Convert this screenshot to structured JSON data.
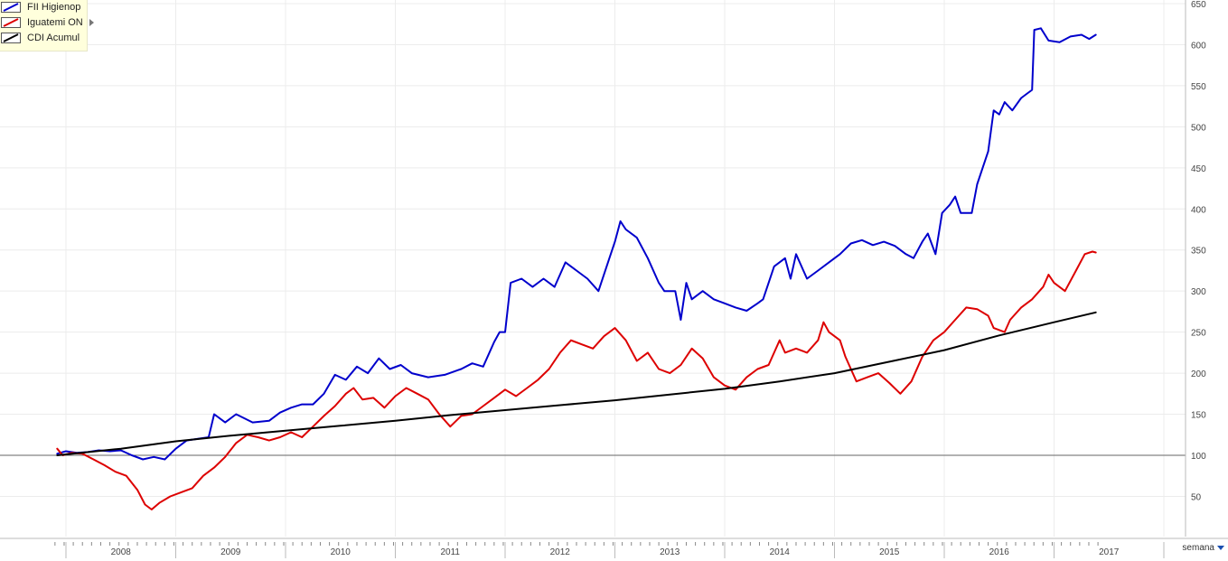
{
  "legend": {
    "items": [
      {
        "label": "FII Higienop",
        "color": "#0000cc"
      },
      {
        "label": "Iguatemi ON",
        "color": "#dd0000"
      },
      {
        "label": "CDI Acumul",
        "color": "#000000"
      }
    ],
    "expand_icon": "triangle-right-icon"
  },
  "period_selector": {
    "label": "semana",
    "icon": "caret-down-icon"
  },
  "chart_data": {
    "type": "line",
    "ylim": [
      0,
      650
    ],
    "yticks": [
      50,
      100,
      150,
      200,
      250,
      300,
      350,
      400,
      450,
      500,
      550,
      600,
      650
    ],
    "baseline": 100,
    "grid": true,
    "legend_position": "top-left",
    "xlim": [
      2007.85,
      2017.45
    ],
    "xtick_labels": [
      "2008",
      "2009",
      "2010",
      "2011",
      "2012",
      "2013",
      "2014",
      "2015",
      "2016",
      "2017"
    ],
    "series": [
      {
        "name": "FII Higienop",
        "color": "#0000cc",
        "points": [
          [
            2007.92,
            102
          ],
          [
            2008.0,
            105
          ],
          [
            2008.1,
            103
          ],
          [
            2008.2,
            104
          ],
          [
            2008.3,
            106
          ],
          [
            2008.4,
            105
          ],
          [
            2008.5,
            106
          ],
          [
            2008.6,
            100
          ],
          [
            2008.7,
            95
          ],
          [
            2008.8,
            98
          ],
          [
            2008.9,
            95
          ],
          [
            2009.0,
            108
          ],
          [
            2009.1,
            118
          ],
          [
            2009.2,
            120
          ],
          [
            2009.3,
            122
          ],
          [
            2009.35,
            150
          ],
          [
            2009.45,
            140
          ],
          [
            2009.55,
            150
          ],
          [
            2009.7,
            140
          ],
          [
            2009.85,
            142
          ],
          [
            2009.95,
            152
          ],
          [
            2010.05,
            158
          ],
          [
            2010.15,
            162
          ],
          [
            2010.25,
            162
          ],
          [
            2010.35,
            175
          ],
          [
            2010.45,
            198
          ],
          [
            2010.55,
            192
          ],
          [
            2010.65,
            208
          ],
          [
            2010.75,
            200
          ],
          [
            2010.85,
            218
          ],
          [
            2010.95,
            205
          ],
          [
            2011.05,
            210
          ],
          [
            2011.15,
            200
          ],
          [
            2011.3,
            195
          ],
          [
            2011.45,
            198
          ],
          [
            2011.6,
            205
          ],
          [
            2011.7,
            212
          ],
          [
            2011.8,
            208
          ],
          [
            2011.9,
            238
          ],
          [
            2011.95,
            250
          ],
          [
            2012.0,
            250
          ],
          [
            2012.05,
            310
          ],
          [
            2012.15,
            315
          ],
          [
            2012.25,
            305
          ],
          [
            2012.35,
            315
          ],
          [
            2012.45,
            305
          ],
          [
            2012.55,
            335
          ],
          [
            2012.65,
            325
          ],
          [
            2012.75,
            315
          ],
          [
            2012.85,
            300
          ],
          [
            2012.95,
            340
          ],
          [
            2013.0,
            360
          ],
          [
            2013.05,
            385
          ],
          [
            2013.1,
            375
          ],
          [
            2013.2,
            365
          ],
          [
            2013.3,
            340
          ],
          [
            2013.4,
            310
          ],
          [
            2013.45,
            300
          ],
          [
            2013.55,
            300
          ],
          [
            2013.6,
            265
          ],
          [
            2013.65,
            310
          ],
          [
            2013.7,
            290
          ],
          [
            2013.8,
            300
          ],
          [
            2013.9,
            290
          ],
          [
            2014.0,
            285
          ],
          [
            2014.1,
            280
          ],
          [
            2014.2,
            276
          ],
          [
            2014.3,
            285
          ],
          [
            2014.35,
            290
          ],
          [
            2014.45,
            330
          ],
          [
            2014.55,
            340
          ],
          [
            2014.6,
            315
          ],
          [
            2014.65,
            345
          ],
          [
            2014.75,
            315
          ],
          [
            2014.85,
            325
          ],
          [
            2014.95,
            335
          ],
          [
            2015.05,
            345
          ],
          [
            2015.15,
            358
          ],
          [
            2015.25,
            362
          ],
          [
            2015.35,
            356
          ],
          [
            2015.45,
            360
          ],
          [
            2015.55,
            355
          ],
          [
            2015.65,
            345
          ],
          [
            2015.72,
            340
          ],
          [
            2015.8,
            360
          ],
          [
            2015.85,
            370
          ],
          [
            2015.92,
            345
          ],
          [
            2015.98,
            395
          ],
          [
            2016.05,
            405
          ],
          [
            2016.1,
            415
          ],
          [
            2016.15,
            395
          ],
          [
            2016.25,
            395
          ],
          [
            2016.3,
            430
          ],
          [
            2016.4,
            470
          ],
          [
            2016.45,
            520
          ],
          [
            2016.5,
            515
          ],
          [
            2016.55,
            530
          ],
          [
            2016.62,
            520
          ],
          [
            2016.7,
            535
          ],
          [
            2016.75,
            540
          ],
          [
            2016.8,
            545
          ],
          [
            2016.82,
            618
          ],
          [
            2016.88,
            620
          ],
          [
            2016.95,
            605
          ],
          [
            2017.05,
            603
          ],
          [
            2017.15,
            610
          ],
          [
            2017.25,
            612
          ],
          [
            2017.32,
            607
          ],
          [
            2017.38,
            612
          ]
        ]
      },
      {
        "name": "Iguatemi ON",
        "color": "#dd0000",
        "points": [
          [
            2007.92,
            108
          ],
          [
            2007.97,
            100
          ],
          [
            2008.05,
            103
          ],
          [
            2008.15,
            102
          ],
          [
            2008.25,
            95
          ],
          [
            2008.35,
            88
          ],
          [
            2008.45,
            80
          ],
          [
            2008.55,
            75
          ],
          [
            2008.65,
            58
          ],
          [
            2008.72,
            40
          ],
          [
            2008.78,
            34
          ],
          [
            2008.85,
            42
          ],
          [
            2008.95,
            50
          ],
          [
            2009.05,
            55
          ],
          [
            2009.15,
            60
          ],
          [
            2009.25,
            75
          ],
          [
            2009.35,
            85
          ],
          [
            2009.45,
            98
          ],
          [
            2009.55,
            115
          ],
          [
            2009.65,
            125
          ],
          [
            2009.75,
            122
          ],
          [
            2009.85,
            118
          ],
          [
            2009.95,
            122
          ],
          [
            2010.05,
            128
          ],
          [
            2010.15,
            122
          ],
          [
            2010.25,
            135
          ],
          [
            2010.35,
            148
          ],
          [
            2010.45,
            160
          ],
          [
            2010.55,
            175
          ],
          [
            2010.62,
            182
          ],
          [
            2010.7,
            168
          ],
          [
            2010.8,
            170
          ],
          [
            2010.9,
            158
          ],
          [
            2011.0,
            172
          ],
          [
            2011.1,
            182
          ],
          [
            2011.2,
            175
          ],
          [
            2011.3,
            168
          ],
          [
            2011.4,
            150
          ],
          [
            2011.5,
            135
          ],
          [
            2011.6,
            148
          ],
          [
            2011.7,
            150
          ],
          [
            2011.8,
            160
          ],
          [
            2011.9,
            170
          ],
          [
            2012.0,
            180
          ],
          [
            2012.1,
            172
          ],
          [
            2012.2,
            182
          ],
          [
            2012.3,
            192
          ],
          [
            2012.4,
            205
          ],
          [
            2012.5,
            225
          ],
          [
            2012.6,
            240
          ],
          [
            2012.7,
            235
          ],
          [
            2012.8,
            230
          ],
          [
            2012.9,
            245
          ],
          [
            2013.0,
            255
          ],
          [
            2013.1,
            240
          ],
          [
            2013.2,
            215
          ],
          [
            2013.3,
            225
          ],
          [
            2013.4,
            205
          ],
          [
            2013.5,
            200
          ],
          [
            2013.6,
            210
          ],
          [
            2013.7,
            230
          ],
          [
            2013.8,
            218
          ],
          [
            2013.9,
            195
          ],
          [
            2014.0,
            185
          ],
          [
            2014.1,
            180
          ],
          [
            2014.2,
            195
          ],
          [
            2014.3,
            205
          ],
          [
            2014.4,
            210
          ],
          [
            2014.5,
            240
          ],
          [
            2014.55,
            225
          ],
          [
            2014.65,
            230
          ],
          [
            2014.75,
            225
          ],
          [
            2014.85,
            240
          ],
          [
            2014.9,
            262
          ],
          [
            2014.95,
            250
          ],
          [
            2015.05,
            240
          ],
          [
            2015.1,
            220
          ],
          [
            2015.2,
            190
          ],
          [
            2015.3,
            195
          ],
          [
            2015.4,
            200
          ],
          [
            2015.5,
            188
          ],
          [
            2015.6,
            175
          ],
          [
            2015.7,
            190
          ],
          [
            2015.8,
            220
          ],
          [
            2015.9,
            240
          ],
          [
            2016.0,
            250
          ],
          [
            2016.1,
            265
          ],
          [
            2016.2,
            280
          ],
          [
            2016.3,
            278
          ],
          [
            2016.4,
            270
          ],
          [
            2016.45,
            255
          ],
          [
            2016.55,
            250
          ],
          [
            2016.6,
            265
          ],
          [
            2016.7,
            280
          ],
          [
            2016.8,
            290
          ],
          [
            2016.9,
            305
          ],
          [
            2016.95,
            320
          ],
          [
            2017.0,
            310
          ],
          [
            2017.1,
            300
          ],
          [
            2017.2,
            325
          ],
          [
            2017.28,
            345
          ],
          [
            2017.35,
            348
          ],
          [
            2017.38,
            347
          ]
        ]
      },
      {
        "name": "CDI Acumul",
        "color": "#000000",
        "points": [
          [
            2007.92,
            100
          ],
          [
            2008.5,
            108
          ],
          [
            2009.0,
            117
          ],
          [
            2009.5,
            124
          ],
          [
            2010.0,
            130
          ],
          [
            2010.5,
            136
          ],
          [
            2011.0,
            142
          ],
          [
            2011.5,
            149
          ],
          [
            2012.0,
            155
          ],
          [
            2012.5,
            161
          ],
          [
            2013.0,
            167
          ],
          [
            2013.5,
            174
          ],
          [
            2014.0,
            181
          ],
          [
            2014.5,
            190
          ],
          [
            2015.0,
            200
          ],
          [
            2015.5,
            214
          ],
          [
            2016.0,
            228
          ],
          [
            2016.5,
            246
          ],
          [
            2017.0,
            262
          ],
          [
            2017.38,
            274
          ]
        ]
      }
    ]
  }
}
